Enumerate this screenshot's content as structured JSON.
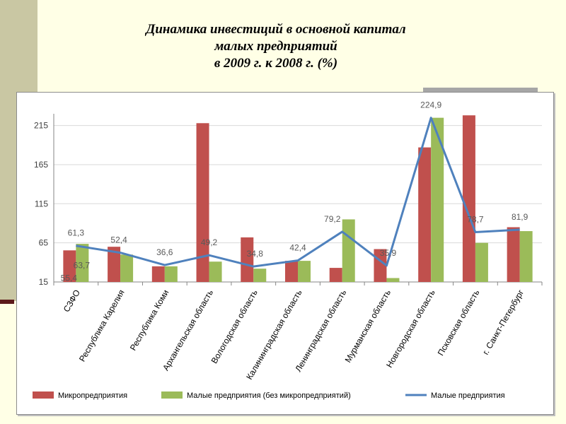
{
  "slide": {
    "title_lines": [
      "Динамика инвестиций в основной капитал",
      "малых предприятий",
      "в 2009 г. к 2008 г. (%)"
    ]
  },
  "colors": {
    "background": "#ffffe6",
    "side_band": "#c9c7a3",
    "micro": "#c0504d",
    "small_no_micro": "#9bbb59",
    "small_line": "#4f81bd"
  },
  "chart_data": {
    "type": "bar",
    "title": "",
    "xlabel": "",
    "ylabel": "",
    "ylim": [
      15,
      230
    ],
    "yticks": [
      15,
      65,
      115,
      165,
      215
    ],
    "grid": true,
    "legend_position": "bottom",
    "categories": [
      "СЗФО",
      "Республика Карелия",
      "Республика Коми",
      "Архангельская область",
      "Вологодская область",
      "Калининградская область",
      "Ленинградская область",
      "Мурманская область",
      "Новгородская область",
      "Псковская область",
      "г. Санкт-Петербург"
    ],
    "series": [
      {
        "name": "Микропредприятия",
        "kind": "bar",
        "color": "#c0504d",
        "values": [
          55.4,
          60,
          35,
          218,
          72,
          42,
          33,
          57,
          187,
          228,
          85
        ]
      },
      {
        "name": "Малые предприятия (без микропредприятий)",
        "kind": "bar",
        "color": "#9bbb59",
        "values": [
          63.7,
          50,
          35,
          41,
          32,
          42,
          95,
          20,
          224.9,
          65,
          80
        ]
      },
      {
        "name": "Малые предприятия",
        "kind": "line",
        "color": "#4f81bd",
        "values": [
          61.3,
          52.4,
          36.6,
          49.2,
          34.8,
          42.4,
          79.2,
          35.9,
          224.9,
          78.7,
          81.9
        ]
      }
    ],
    "data_labels": [
      {
        "category": 0,
        "text": "61,3"
      },
      {
        "category": 0,
        "text": "63,7"
      },
      {
        "category": 0,
        "text": "55,4"
      },
      {
        "category": 1,
        "text": "52,4"
      },
      {
        "category": 2,
        "text": "36,6"
      },
      {
        "category": 3,
        "text": "49,2"
      },
      {
        "category": 4,
        "text": "34,8"
      },
      {
        "category": 5,
        "text": "42,4"
      },
      {
        "category": 6,
        "text": "79,2"
      },
      {
        "category": 7,
        "text": "35,9"
      },
      {
        "category": 8,
        "text": "224,9"
      },
      {
        "category": 9,
        "text": "78,7"
      },
      {
        "category": 10,
        "text": "81,9"
      }
    ]
  }
}
